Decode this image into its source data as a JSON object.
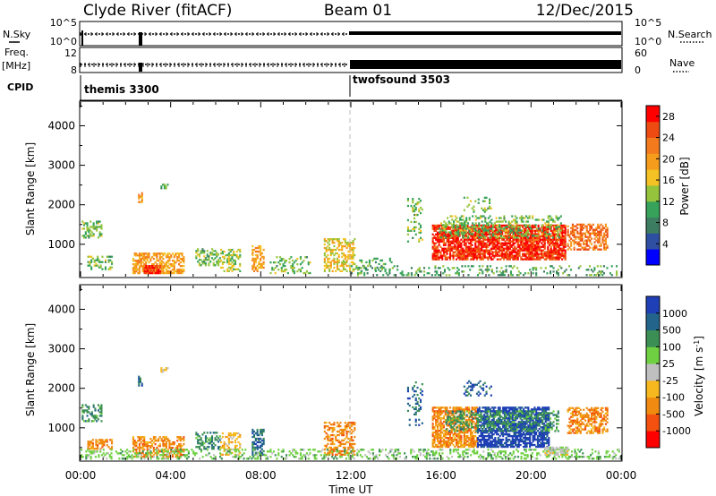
{
  "header": {
    "station": "Clyde River (fitACF)",
    "beam": "Beam 01",
    "date": "12/Dec/2015"
  },
  "strips": {
    "nsky_label": "N.Sky",
    "nsky_ticks": [
      "10^5",
      "10^0"
    ],
    "nsearch_label": "N.Search",
    "nsearch_ticks": [
      "10^5",
      "10^0"
    ],
    "freq_label": "Freq.",
    "freq_unit": "[MHz]",
    "freq_ticks": [
      "12",
      "8"
    ],
    "nave_label": "Nave",
    "nave_ticks": [
      "60",
      "0"
    ],
    "cpid_label": "CPID",
    "cpid_modes": [
      {
        "name": "themis 3300",
        "start_hour": 0
      },
      {
        "name": "twofsound 3503",
        "start_hour": 12
      }
    ]
  },
  "colors": {
    "power_scale": [
      "#0000ff",
      "#2f4fa3",
      "#3d7d62",
      "#37a35a",
      "#95c43c",
      "#f4c224",
      "#f59c1c",
      "#f47a1e",
      "#ee4b12",
      "#ff0000"
    ],
    "velocity_scale": [
      "#ff0000",
      "#f45010",
      "#f08a10",
      "#f6b81e",
      "#bfbfbf",
      "#6fd141",
      "#3b8f55",
      "#23658a",
      "#1f3fb7"
    ],
    "dashed_line": "#bbbbbb",
    "ground_scatter": "#b8b8b8"
  },
  "chart_data": [
    {
      "type": "heatmap",
      "panel": "power",
      "ylabel": "Slant Range [km]",
      "y_ticks": [
        1000,
        2000,
        3000,
        4000
      ],
      "ylim": [
        180,
        4600
      ],
      "xlim": [
        0,
        24
      ],
      "colorbar_label": "Power [dB]",
      "colorbar_ticks": [
        "4",
        "8",
        "12",
        "16",
        "20",
        "24",
        "28"
      ],
      "colorbar_range": [
        0,
        30
      ],
      "grid": false,
      "regions": [
        {
          "t0": 0.05,
          "t1": 0.9,
          "r0": 1150,
          "r1": 1600,
          "v": 12,
          "d": 0.45
        },
        {
          "t0": 0.3,
          "t1": 1.4,
          "r0": 350,
          "r1": 700,
          "v": 12,
          "d": 0.45
        },
        {
          "t0": 2.3,
          "t1": 4.6,
          "r0": 250,
          "r1": 750,
          "v": 20,
          "d": 0.6
        },
        {
          "t0": 2.8,
          "t1": 3.5,
          "r0": 250,
          "r1": 450,
          "v": 28,
          "d": 0.85
        },
        {
          "t0": 2.55,
          "t1": 2.75,
          "r0": 2050,
          "r1": 2300,
          "v": 20,
          "d": 0.6
        },
        {
          "t0": 3.55,
          "t1": 3.85,
          "r0": 2400,
          "r1": 2500,
          "v": 12,
          "d": 0.6
        },
        {
          "t0": 5.1,
          "t1": 6.2,
          "r0": 450,
          "r1": 900,
          "v": 12,
          "d": 0.4
        },
        {
          "t0": 6.2,
          "t1": 7.1,
          "r0": 300,
          "r1": 850,
          "v": 14,
          "d": 0.4
        },
        {
          "t0": 7.6,
          "t1": 8.1,
          "r0": 300,
          "r1": 950,
          "v": 20,
          "d": 0.55
        },
        {
          "t0": 8.4,
          "t1": 10.2,
          "r0": 250,
          "r1": 700,
          "v": 12,
          "d": 0.3
        },
        {
          "t0": 10.8,
          "t1": 12.2,
          "r0": 300,
          "r1": 1150,
          "v": 16,
          "d": 0.5
        },
        {
          "t0": 12.3,
          "t1": 13.8,
          "r0": 300,
          "r1": 650,
          "v": 10,
          "d": 0.2
        },
        {
          "t0": 14.5,
          "t1": 15.2,
          "r0": 1050,
          "r1": 2150,
          "v": 12,
          "d": 0.2
        },
        {
          "t0": 15.6,
          "t1": 21.5,
          "r0": 600,
          "r1": 1500,
          "v": 28,
          "d": 0.8
        },
        {
          "t0": 15.9,
          "t1": 21.3,
          "r0": 1150,
          "r1": 1700,
          "v": 12,
          "d": 0.35
        },
        {
          "t0": 17.0,
          "t1": 18.2,
          "r0": 1800,
          "r1": 2200,
          "v": 12,
          "d": 0.2
        },
        {
          "t0": 21.6,
          "t1": 23.4,
          "r0": 850,
          "r1": 1500,
          "v": 24,
          "d": 0.55
        },
        {
          "t0": 12.0,
          "t1": 24.0,
          "r0": 200,
          "r1": 450,
          "v": 10,
          "d": 0.2
        }
      ]
    },
    {
      "type": "heatmap",
      "panel": "velocity",
      "xlabel": "Time UT",
      "ylabel": "Slant Range [km]",
      "y_ticks": [
        1000,
        2000,
        3000,
        4000
      ],
      "ylim": [
        180,
        4600
      ],
      "xlim": [
        0,
        24
      ],
      "x_ticks": [
        "00:00",
        "04:00",
        "08:00",
        "12:00",
        "16:00",
        "20:00",
        "00:00"
      ],
      "colorbar_label": "Velocity [m s^-1]",
      "colorbar_ticks": [
        "-1000",
        "-500",
        "-100",
        "-25",
        "25",
        "100",
        "500",
        "1000"
      ],
      "grid": false,
      "regions": [
        {
          "t0": 0.05,
          "t1": 0.9,
          "r0": 1150,
          "r1": 1600,
          "c": 6,
          "d": 0.45
        },
        {
          "t0": 0.3,
          "t1": 1.4,
          "r0": 450,
          "r1": 700,
          "c": 2,
          "d": 0.45
        },
        {
          "t0": 2.3,
          "t1": 4.6,
          "r0": 250,
          "r1": 750,
          "c": 2,
          "d": 0.55
        },
        {
          "t0": 2.55,
          "t1": 2.75,
          "r0": 2050,
          "r1": 2300,
          "c": 7,
          "d": 0.6
        },
        {
          "t0": 3.55,
          "t1": 3.85,
          "r0": 2400,
          "r1": 2500,
          "c": 3,
          "d": 0.6
        },
        {
          "t0": 5.1,
          "t1": 6.2,
          "r0": 450,
          "r1": 900,
          "c": 6,
          "d": 0.4
        },
        {
          "t0": 6.2,
          "t1": 7.1,
          "r0": 300,
          "r1": 850,
          "c": 3,
          "d": 0.4
        },
        {
          "t0": 7.6,
          "t1": 8.1,
          "r0": 300,
          "r1": 950,
          "c": 7,
          "d": 0.55
        },
        {
          "t0": 10.8,
          "t1": 12.2,
          "r0": 300,
          "r1": 1150,
          "c": 2,
          "d": 0.5
        },
        {
          "t0": 14.5,
          "t1": 15.2,
          "r0": 1050,
          "r1": 2150,
          "c": 7,
          "d": 0.2
        },
        {
          "t0": 15.6,
          "t1": 17.6,
          "r0": 500,
          "r1": 1500,
          "c": 2,
          "d": 0.7
        },
        {
          "t0": 17.6,
          "t1": 20.8,
          "r0": 500,
          "r1": 1500,
          "c": 8,
          "d": 0.7
        },
        {
          "t0": 16.2,
          "t1": 21.2,
          "r0": 900,
          "r1": 1400,
          "c": 6,
          "d": 0.4
        },
        {
          "t0": 17.0,
          "t1": 18.2,
          "r0": 1800,
          "r1": 2200,
          "c": 7,
          "d": 0.2
        },
        {
          "t0": 21.6,
          "t1": 23.4,
          "r0": 850,
          "r1": 1500,
          "c": 2,
          "d": 0.55
        },
        {
          "t0": 0.0,
          "t1": 24.0,
          "r0": 200,
          "r1": 450,
          "c": 5,
          "d": 0.3
        },
        {
          "t0": 20.6,
          "t1": 21.6,
          "r0": 300,
          "r1": 500,
          "c": 4,
          "d": 0.8
        }
      ]
    }
  ]
}
